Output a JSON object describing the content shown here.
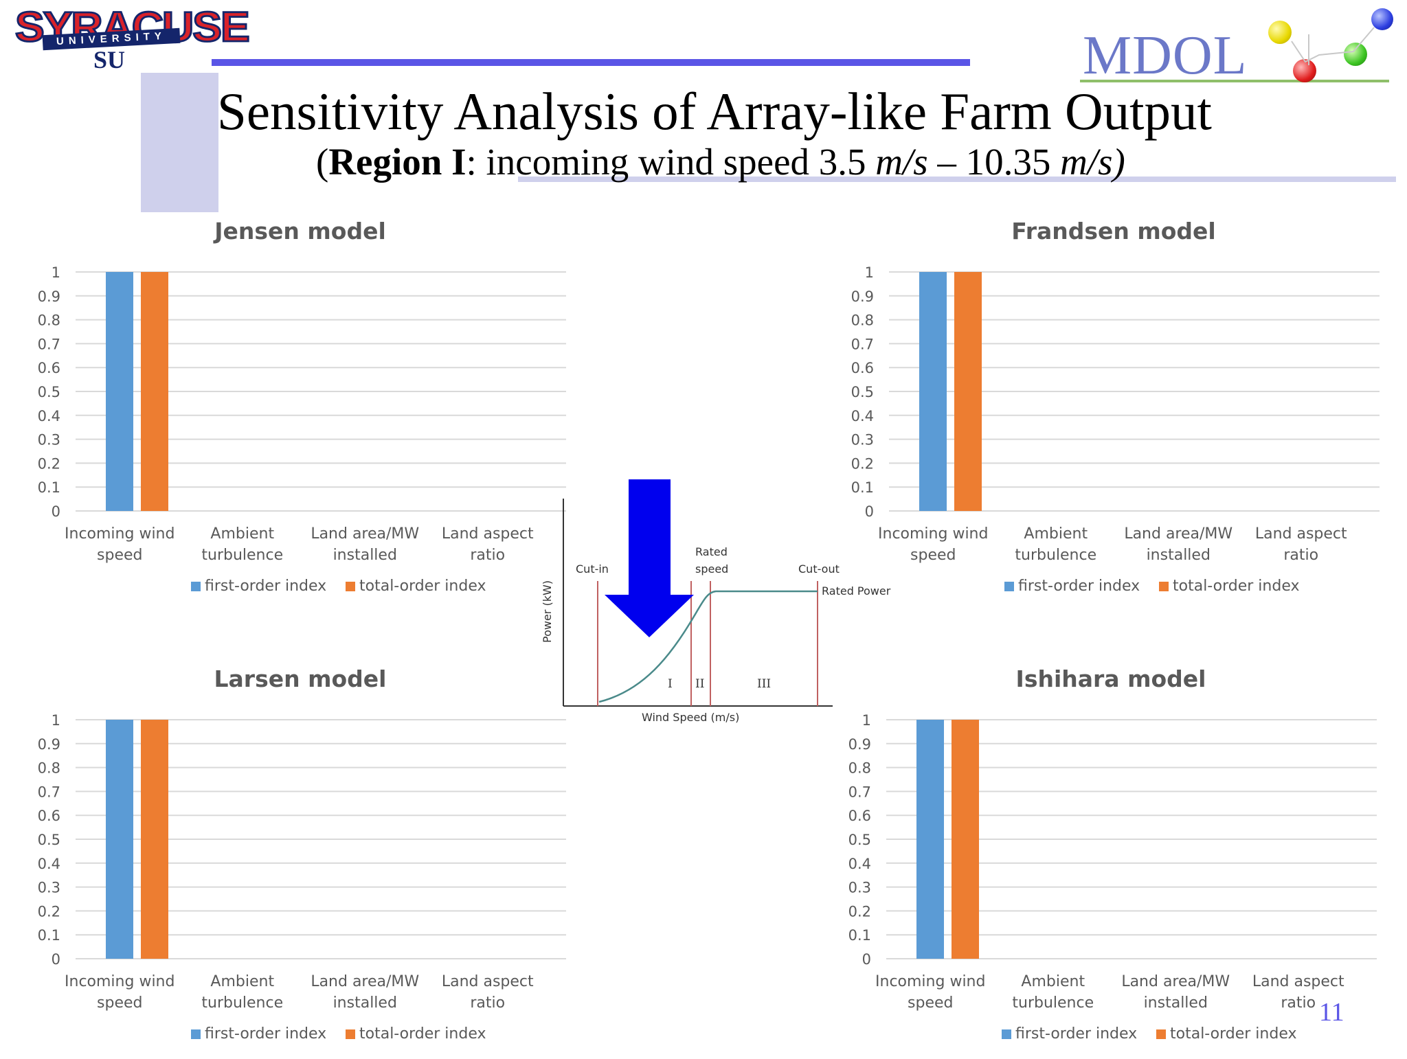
{
  "header": {
    "title": "Sensitivity Analysis of Array-like Farm Output",
    "subtitle_prefix": "(",
    "subtitle_bold": "Region I",
    "subtitle_mid": ": incoming wind speed 3.5 ",
    "subtitle_unit1": "m/s",
    "subtitle_dash": " – 10.35 ",
    "subtitle_unit2": "m/s)",
    "page_number": "11"
  },
  "logos": {
    "left_word": "SYRACUSE",
    "left_banner": "UNIVERSITY",
    "left_monogram": "SU",
    "right_word": "MDOL"
  },
  "colors": {
    "first_order": "#5b9bd5",
    "total_order": "#ed7d31",
    "accent_bar": "#5a55e6",
    "light_block": "#cfd0ec",
    "arrow": "#0000ee"
  },
  "power_curve": {
    "ylabel": "Power (kW)",
    "xlabel": "Wind Speed (m/s)",
    "cut_in": "Cut-in",
    "rated_speed_line1": "Rated",
    "rated_speed_line2": "speed",
    "cut_out": "Cut-out",
    "rated_power": "Rated Power",
    "region1": "I",
    "region2": "II",
    "region3": "III"
  },
  "chart_data": [
    {
      "type": "bar",
      "title": "Jensen model",
      "categories": [
        [
          "Incoming wind",
          "speed"
        ],
        [
          "Ambient",
          "turbulence"
        ],
        [
          "Land area/MW",
          "installed"
        ],
        [
          "Land aspect",
          "ratio"
        ]
      ],
      "series": [
        {
          "name": "first-order index",
          "values": [
            1,
            0,
            0,
            0
          ]
        },
        {
          "name": "total-order index",
          "values": [
            1,
            0,
            0,
            0
          ]
        }
      ],
      "ylim": [
        0,
        1
      ],
      "yticks": [
        "0",
        "0.1",
        "0.2",
        "0.3",
        "0.4",
        "0.5",
        "0.6",
        "0.7",
        "0.8",
        "0.9",
        "1"
      ],
      "grid": true,
      "legend": "bottom"
    },
    {
      "type": "bar",
      "title": "Frandsen model",
      "categories": [
        [
          "Incoming wind",
          "speed"
        ],
        [
          "Ambient",
          "turbulence"
        ],
        [
          "Land area/MW",
          "installed"
        ],
        [
          "Land aspect",
          "ratio"
        ]
      ],
      "series": [
        {
          "name": "first-order index",
          "values": [
            1,
            0,
            0,
            0
          ]
        },
        {
          "name": "total-order index",
          "values": [
            1,
            0,
            0,
            0
          ]
        }
      ],
      "ylim": [
        0,
        1
      ],
      "yticks": [
        "0",
        "0.1",
        "0.2",
        "0.3",
        "0.4",
        "0.5",
        "0.6",
        "0.7",
        "0.8",
        "0.9",
        "1"
      ],
      "grid": true,
      "legend": "bottom"
    },
    {
      "type": "bar",
      "title": "Larsen model",
      "categories": [
        [
          "Incoming wind",
          "speed"
        ],
        [
          "Ambient",
          "turbulence"
        ],
        [
          "Land area/MW",
          "installed"
        ],
        [
          "Land aspect",
          "ratio"
        ]
      ],
      "series": [
        {
          "name": "first-order index",
          "values": [
            1,
            0,
            0,
            0
          ]
        },
        {
          "name": "total-order index",
          "values": [
            1,
            0,
            0,
            0
          ]
        }
      ],
      "ylim": [
        0,
        1
      ],
      "yticks": [
        "0",
        "0.1",
        "0.2",
        "0.3",
        "0.4",
        "0.5",
        "0.6",
        "0.7",
        "0.8",
        "0.9",
        "1"
      ],
      "grid": true,
      "legend": "bottom"
    },
    {
      "type": "bar",
      "title": "Ishihara model",
      "categories": [
        [
          "Incoming wind",
          "speed"
        ],
        [
          "Ambient",
          "turbulence"
        ],
        [
          "Land area/MW",
          "installed"
        ],
        [
          "Land aspect",
          "ratio"
        ]
      ],
      "series": [
        {
          "name": "first-order index",
          "values": [
            1,
            0,
            0,
            0
          ]
        },
        {
          "name": "total-order index",
          "values": [
            1,
            0,
            0,
            0
          ]
        }
      ],
      "ylim": [
        0,
        1
      ],
      "yticks": [
        "0",
        "0.1",
        "0.2",
        "0.3",
        "0.4",
        "0.5",
        "0.6",
        "0.7",
        "0.8",
        "0.9",
        "1"
      ],
      "grid": true,
      "legend": "bottom"
    }
  ]
}
